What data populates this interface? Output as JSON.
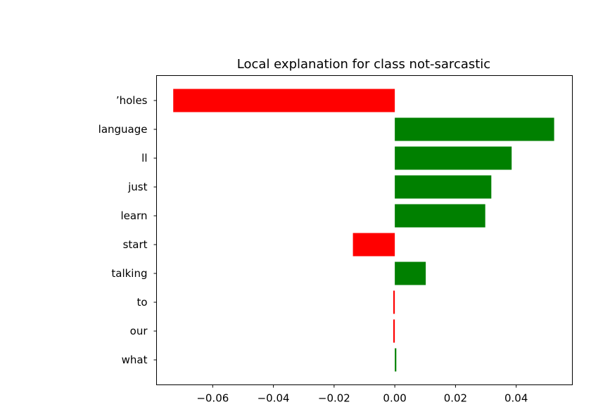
{
  "chart_data": {
    "type": "bar",
    "orientation": "horizontal",
    "title": "Local explanation for class not-sarcastic",
    "xlabel": "",
    "ylabel": "",
    "xlim": [
      -0.0785,
      0.0585
    ],
    "x_ticks": [
      -0.06,
      -0.04,
      -0.02,
      0.0,
      0.02,
      0.04
    ],
    "x_tick_labels": [
      "−0.06",
      "−0.04",
      "−0.02",
      "0.00",
      "0.02",
      "0.04"
    ],
    "categories": [
      "’holes",
      "language",
      "ll",
      "just",
      "learn",
      "start",
      "talking",
      "to",
      "our",
      "what"
    ],
    "values": [
      -0.073,
      0.0525,
      0.0385,
      0.0318,
      0.0298,
      -0.0138,
      0.0102,
      -0.0005,
      -0.0005,
      0.0005
    ],
    "colors": {
      "positive": "#008000",
      "negative": "#ff0000"
    },
    "grid": false,
    "legend": "none"
  }
}
